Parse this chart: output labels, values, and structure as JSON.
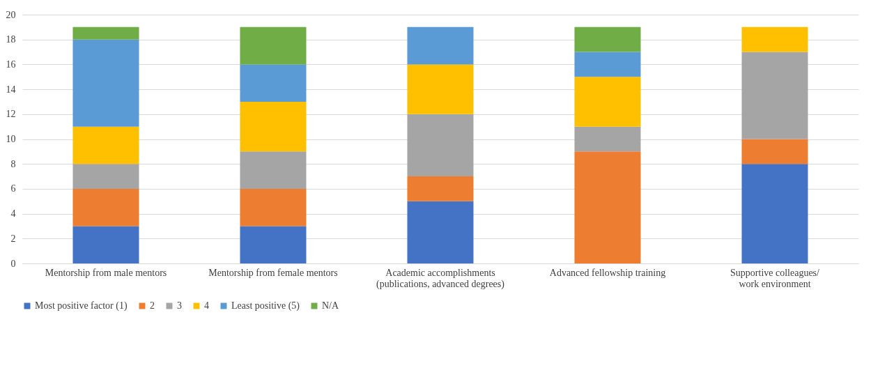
{
  "chart_data": {
    "type": "bar",
    "stacked": true,
    "categories": [
      "Mentorship from male mentors",
      "Mentorship from female mentors",
      "Academic accomplishments\n(publications, advanced degrees)",
      "Advanced fellowship training",
      "Supportive colleagues/\nwork environment"
    ],
    "series": [
      {
        "name": "Most positive factor (1)",
        "color": "#4472c4",
        "values": [
          3,
          3,
          5,
          0,
          8
        ]
      },
      {
        "name": "2",
        "color": "#ed7d31",
        "values": [
          3,
          3,
          2,
          9,
          2
        ]
      },
      {
        "name": "3",
        "color": "#a5a5a5",
        "values": [
          2,
          3,
          5,
          2,
          7
        ]
      },
      {
        "name": "4",
        "color": "#ffc000",
        "values": [
          3,
          4,
          4,
          4,
          2
        ]
      },
      {
        "name": "Least positive (5)",
        "color": "#5b9bd5",
        "values": [
          7,
          3,
          3,
          2,
          0
        ]
      },
      {
        "name": "N/A",
        "color": "#70ad47",
        "values": [
          1,
          3,
          0,
          2,
          0
        ]
      }
    ],
    "ylim": [
      0,
      20
    ],
    "yticks": [
      0,
      2,
      4,
      6,
      8,
      10,
      12,
      14,
      16,
      18,
      20
    ],
    "grid": "y",
    "legend": "bottom"
  }
}
